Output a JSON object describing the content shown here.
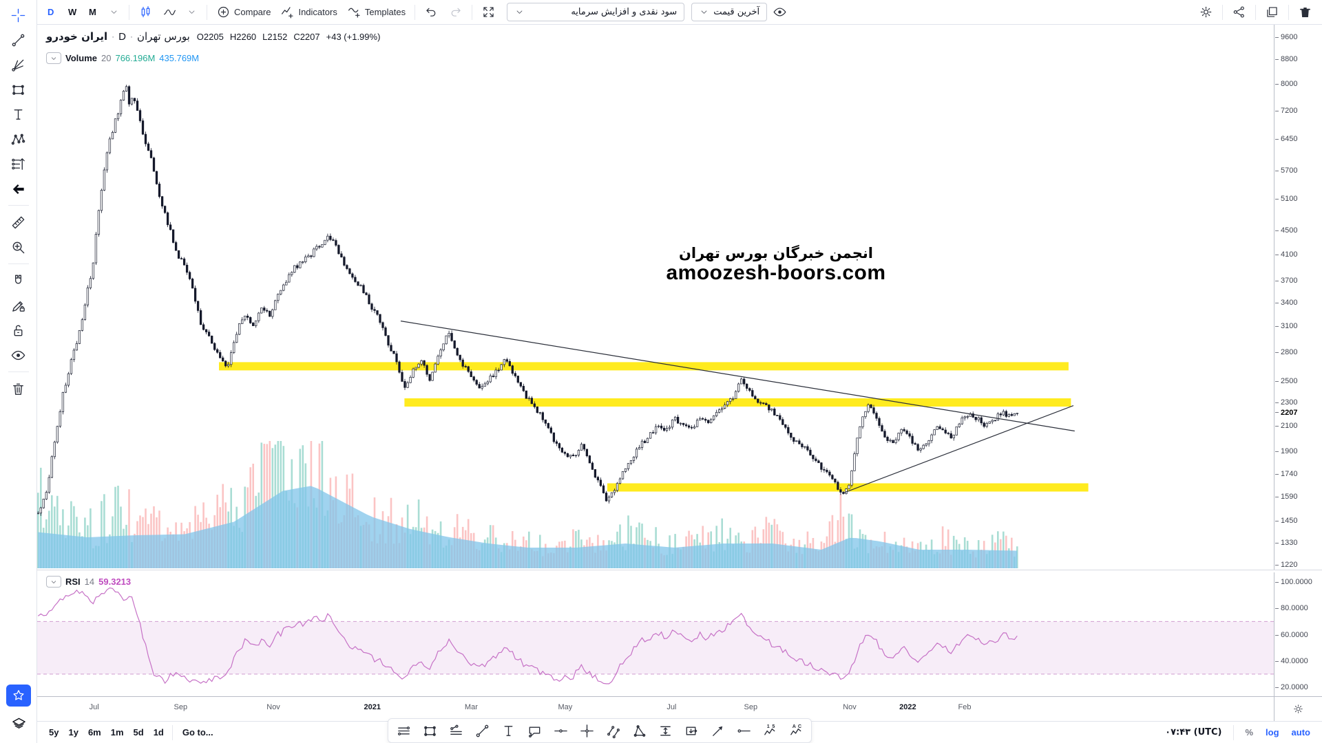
{
  "colors": {
    "accent": "#2962ff",
    "green": "#22ab94",
    "blue": "#2196f3",
    "rsi": "#bf4bbf",
    "candle": "#15192b",
    "band_yellow": "#ffe90c",
    "volume_up": "rgba(41,171,148,0.4)",
    "volume_down": "rgba(247,124,124,0.45)",
    "volume_ma_area": "rgba(128,196,233,0.75)",
    "rsi_line": "#c671c6",
    "trend_line": "#2a2e39"
  },
  "top_toolbar": {
    "intervals": [
      "D",
      "W",
      "M"
    ],
    "active_interval": "D",
    "compare_label": "Compare",
    "indicators_label": "Indicators",
    "templates_label": "Templates",
    "dropdown_adjustments": "سود نقدی و افزایش سرمایه",
    "dropdown_price_mode": "آخرین قیمت"
  },
  "legend": {
    "symbol": "ایران خودرو",
    "sep1": "·",
    "interval": "D",
    "sep2": "·",
    "exchange": "بورس تهران",
    "o": "O2205",
    "h": "H2260",
    "l": "L2152",
    "c": "C2207",
    "change": "+43 (+1.99%)",
    "volume_label": "Volume",
    "volume_period": "20",
    "volume_ma1": "766.196M",
    "volume_ma2": "435.769M",
    "rsi_label": "RSI",
    "rsi_period": "14",
    "rsi_value": "59.3213"
  },
  "bottom_toolbar": {
    "ranges": [
      "5y",
      "1y",
      "6m",
      "1m",
      "5d",
      "1d"
    ],
    "goto_label": "Go to...",
    "clock": "۰۷:۴۳ (UTC)",
    "percent_label": "%",
    "log_label": "log",
    "auto_label": "auto"
  },
  "left_toolbar": {
    "items": [
      {
        "name": "crosshair",
        "active": true
      },
      {
        "name": "trend-line"
      },
      {
        "name": "pitchfork"
      },
      {
        "name": "rectangle"
      },
      {
        "name": "text"
      },
      {
        "name": "xabcd-pattern"
      },
      {
        "name": "forecast"
      },
      {
        "name": "arrow-left",
        "style": "dark"
      },
      {
        "type": "divider"
      },
      {
        "name": "ruler"
      },
      {
        "name": "zoom-in"
      },
      {
        "type": "divider"
      },
      {
        "name": "magnet"
      },
      {
        "name": "pencil-lock"
      },
      {
        "name": "lock"
      },
      {
        "name": "eye"
      },
      {
        "type": "divider"
      },
      {
        "name": "trash"
      }
    ]
  },
  "drawing_toolbar": {
    "tools": [
      "horizontal-lines",
      "rectangle",
      "polyline",
      "trend-line",
      "text",
      "callout",
      "horizontal-line",
      "cross-line",
      "parallel-lines",
      "triangle",
      "price-range",
      "date-price-range",
      "arrow-marker",
      "horizontal-ray",
      "elliott-impulse",
      "elliott-correction"
    ]
  },
  "chart_data": {
    "type": "candlestick+volume+rsi",
    "symbol": "ایران خودرو",
    "exchange": "بورس تهران",
    "timeframe": "D",
    "ohlc_display": {
      "open": 2205,
      "high": 2260,
      "low": 2152,
      "close": 2207,
      "change": "+43",
      "change_pct": "+1.99%"
    },
    "watermark": {
      "line1": "انجمن خبرگان بورس تهران",
      "line2": "amoozesh-boors.com"
    },
    "price_scale": {
      "type": "log",
      "ticks": [
        9600,
        8800,
        8000,
        7200,
        6450,
        5700,
        5100,
        4500,
        4100,
        3700,
        3400,
        3100,
        2800,
        2500,
        2300,
        2100,
        1900,
        1740,
        1590,
        1450,
        1330,
        1220
      ],
      "current": 2207
    },
    "time_labels": [
      {
        "text": "Jul",
        "t": 0.046
      },
      {
        "text": "Sep",
        "t": 0.116
      },
      {
        "text": "Nov",
        "t": 0.191
      },
      {
        "text": "2021",
        "t": 0.271,
        "year": true
      },
      {
        "text": "Mar",
        "t": 0.351
      },
      {
        "text": "May",
        "t": 0.427
      },
      {
        "text": "Jul",
        "t": 0.513
      },
      {
        "text": "Sep",
        "t": 0.577
      },
      {
        "text": "Nov",
        "t": 0.657
      },
      {
        "text": "2022",
        "t": 0.704,
        "year": true
      },
      {
        "text": "Feb",
        "t": 0.75
      }
    ],
    "close_path": [
      [
        0,
        1500
      ],
      [
        0.009,
        1620
      ],
      [
        0.026,
        2400
      ],
      [
        0.039,
        2900
      ],
      [
        0.047,
        3300
      ],
      [
        0.056,
        3950
      ],
      [
        0.065,
        5300
      ],
      [
        0.073,
        6400
      ],
      [
        0.082,
        7200
      ],
      [
        0.089,
        8050
      ],
      [
        0.093,
        7400
      ],
      [
        0.097,
        7700
      ],
      [
        0.108,
        6500
      ],
      [
        0.116,
        5900
      ],
      [
        0.125,
        5050
      ],
      [
        0.133,
        4600
      ],
      [
        0.142,
        4100
      ],
      [
        0.151,
        3900
      ],
      [
        0.159,
        3500
      ],
      [
        0.168,
        3050
      ],
      [
        0.176,
        2950
      ],
      [
        0.187,
        2700
      ],
      [
        0.194,
        2640
      ],
      [
        0.202,
        3000
      ],
      [
        0.211,
        3250
      ],
      [
        0.219,
        3100
      ],
      [
        0.228,
        3320
      ],
      [
        0.237,
        3220
      ],
      [
        0.245,
        3500
      ],
      [
        0.254,
        3720
      ],
      [
        0.262,
        3900
      ],
      [
        0.271,
        4000
      ],
      [
        0.28,
        4120
      ],
      [
        0.288,
        4260
      ],
      [
        0.297,
        4420
      ],
      [
        0.306,
        4180
      ],
      [
        0.314,
        3900
      ],
      [
        0.323,
        3700
      ],
      [
        0.331,
        3580
      ],
      [
        0.34,
        3350
      ],
      [
        0.349,
        3180
      ],
      [
        0.357,
        2900
      ],
      [
        0.366,
        2700
      ],
      [
        0.374,
        2430
      ],
      [
        0.383,
        2600
      ],
      [
        0.392,
        2720
      ],
      [
        0.4,
        2520
      ],
      [
        0.41,
        2820
      ],
      [
        0.419,
        3020
      ],
      [
        0.426,
        2820
      ],
      [
        0.435,
        2650
      ],
      [
        0.443,
        2550
      ],
      [
        0.452,
        2440
      ],
      [
        0.46,
        2510
      ],
      [
        0.469,
        2610
      ],
      [
        0.478,
        2740
      ],
      [
        0.486,
        2550
      ],
      [
        0.495,
        2400
      ],
      [
        0.503,
        2300
      ],
      [
        0.512,
        2200
      ],
      [
        0.521,
        2080
      ],
      [
        0.529,
        1950
      ],
      [
        0.538,
        1890
      ],
      [
        0.546,
        1850
      ],
      [
        0.555,
        1960
      ],
      [
        0.564,
        1800
      ],
      [
        0.572,
        1690
      ],
      [
        0.581,
        1560
      ],
      [
        0.59,
        1650
      ],
      [
        0.598,
        1760
      ],
      [
        0.607,
        1860
      ],
      [
        0.615,
        1950
      ],
      [
        0.624,
        2010
      ],
      [
        0.633,
        2110
      ],
      [
        0.641,
        2050
      ],
      [
        0.65,
        2160
      ],
      [
        0.658,
        2100
      ],
      [
        0.667,
        2060
      ],
      [
        0.676,
        2160
      ],
      [
        0.684,
        2110
      ],
      [
        0.693,
        2210
      ],
      [
        0.701,
        2260
      ],
      [
        0.71,
        2360
      ],
      [
        0.719,
        2510
      ],
      [
        0.727,
        2400
      ],
      [
        0.736,
        2300
      ],
      [
        0.744,
        2260
      ],
      [
        0.753,
        2200
      ],
      [
        0.762,
        2100
      ],
      [
        0.77,
        2000
      ],
      [
        0.779,
        1950
      ],
      [
        0.787,
        1900
      ],
      [
        0.796,
        1810
      ],
      [
        0.805,
        1750
      ],
      [
        0.813,
        1700
      ],
      [
        0.822,
        1590
      ],
      [
        0.829,
        1680
      ],
      [
        0.836,
        1980
      ],
      [
        0.842,
        2160
      ],
      [
        0.849,
        2280
      ],
      [
        0.856,
        2150
      ],
      [
        0.865,
        2000
      ],
      [
        0.873,
        1950
      ],
      [
        0.882,
        2060
      ],
      [
        0.891,
        2000
      ],
      [
        0.899,
        1910
      ],
      [
        0.908,
        1960
      ],
      [
        0.917,
        2100
      ],
      [
        0.925,
        2060
      ],
      [
        0.934,
        2010
      ],
      [
        0.942,
        2150
      ],
      [
        0.951,
        2210
      ],
      [
        0.96,
        2150
      ],
      [
        0.968,
        2100
      ],
      [
        0.977,
        2160
      ],
      [
        0.985,
        2210
      ],
      [
        0.994,
        2180
      ],
      [
        1,
        2207
      ]
    ],
    "volume_path": [
      [
        0,
        0.6
      ],
      [
        0.02,
        0.4
      ],
      [
        0.05,
        0.3
      ],
      [
        0.08,
        0.5
      ],
      [
        0.1,
        0.38
      ],
      [
        0.13,
        0.3
      ],
      [
        0.16,
        0.35
      ],
      [
        0.19,
        0.55
      ],
      [
        0.21,
        0.45
      ],
      [
        0.235,
        0.8
      ],
      [
        0.25,
        1
      ],
      [
        0.265,
        0.85
      ],
      [
        0.285,
        0.95
      ],
      [
        0.3,
        0.7
      ],
      [
        0.32,
        0.5
      ],
      [
        0.34,
        0.45
      ],
      [
        0.36,
        0.4
      ],
      [
        0.38,
        0.42
      ],
      [
        0.4,
        0.35
      ],
      [
        0.42,
        0.3
      ],
      [
        0.45,
        0.26
      ],
      [
        0.48,
        0.24
      ],
      [
        0.5,
        0.2
      ],
      [
        0.53,
        0.18
      ],
      [
        0.56,
        0.26
      ],
      [
        0.58,
        0.2
      ],
      [
        0.6,
        0.3
      ],
      [
        0.62,
        0.24
      ],
      [
        0.65,
        0.18
      ],
      [
        0.68,
        0.26
      ],
      [
        0.7,
        0.3
      ],
      [
        0.72,
        0.2
      ],
      [
        0.75,
        0.3
      ],
      [
        0.78,
        0.22
      ],
      [
        0.8,
        0.15
      ],
      [
        0.82,
        0.45
      ],
      [
        0.84,
        0.28
      ],
      [
        0.86,
        0.2
      ],
      [
        0.88,
        0.18
      ],
      [
        0.9,
        0.16
      ],
      [
        0.92,
        0.26
      ],
      [
        0.94,
        0.18
      ],
      [
        0.96,
        0.16
      ],
      [
        0.98,
        0.2
      ],
      [
        1,
        0.18
      ]
    ],
    "volume_ma_path": [
      [
        0,
        0.35
      ],
      [
        0.05,
        0.3
      ],
      [
        0.1,
        0.32
      ],
      [
        0.15,
        0.33
      ],
      [
        0.2,
        0.45
      ],
      [
        0.25,
        0.75
      ],
      [
        0.28,
        0.8
      ],
      [
        0.31,
        0.65
      ],
      [
        0.34,
        0.5
      ],
      [
        0.38,
        0.38
      ],
      [
        0.42,
        0.3
      ],
      [
        0.46,
        0.24
      ],
      [
        0.5,
        0.2
      ],
      [
        0.55,
        0.2
      ],
      [
        0.6,
        0.24
      ],
      [
        0.65,
        0.2
      ],
      [
        0.7,
        0.24
      ],
      [
        0.75,
        0.24
      ],
      [
        0.8,
        0.18
      ],
      [
        0.83,
        0.3
      ],
      [
        0.86,
        0.26
      ],
      [
        0.9,
        0.18
      ],
      [
        0.95,
        0.18
      ],
      [
        1,
        0.17
      ]
    ],
    "rsi": {
      "period": 14,
      "value": 59.3213,
      "levels": [
        100,
        80,
        60,
        40,
        20
      ],
      "band": [
        30,
        70
      ],
      "path": [
        [
          0,
          72
        ],
        [
          0.013,
          80
        ],
        [
          0.026,
          88
        ],
        [
          0.039,
          92
        ],
        [
          0.047,
          90
        ],
        [
          0.056,
          85
        ],
        [
          0.065,
          90
        ],
        [
          0.073,
          95
        ],
        [
          0.082,
          90
        ],
        [
          0.09,
          85
        ],
        [
          0.095,
          88
        ],
        [
          0.103,
          70
        ],
        [
          0.112,
          45
        ],
        [
          0.12,
          28
        ],
        [
          0.129,
          25
        ],
        [
          0.138,
          30
        ],
        [
          0.146,
          28
        ],
        [
          0.155,
          25
        ],
        [
          0.164,
          22
        ],
        [
          0.172,
          25
        ],
        [
          0.181,
          28
        ],
        [
          0.187,
          25
        ],
        [
          0.194,
          30
        ],
        [
          0.202,
          45
        ],
        [
          0.211,
          55
        ],
        [
          0.219,
          50
        ],
        [
          0.228,
          55
        ],
        [
          0.237,
          52
        ],
        [
          0.245,
          60
        ],
        [
          0.254,
          64
        ],
        [
          0.262,
          67
        ],
        [
          0.271,
          69
        ],
        [
          0.28,
          71
        ],
        [
          0.288,
          72
        ],
        [
          0.297,
          74
        ],
        [
          0.306,
          64
        ],
        [
          0.314,
          55
        ],
        [
          0.323,
          50
        ],
        [
          0.331,
          48
        ],
        [
          0.34,
          43
        ],
        [
          0.349,
          40
        ],
        [
          0.357,
          35
        ],
        [
          0.366,
          30
        ],
        [
          0.374,
          27
        ],
        [
          0.383,
          35
        ],
        [
          0.392,
          40
        ],
        [
          0.4,
          35
        ],
        [
          0.41,
          48
        ],
        [
          0.419,
          55
        ],
        [
          0.426,
          48
        ],
        [
          0.435,
          42
        ],
        [
          0.443,
          38
        ],
        [
          0.452,
          35
        ],
        [
          0.46,
          38
        ],
        [
          0.469,
          45
        ],
        [
          0.478,
          52
        ],
        [
          0.486,
          45
        ],
        [
          0.495,
          38
        ],
        [
          0.503,
          35
        ],
        [
          0.512,
          32
        ],
        [
          0.521,
          28
        ],
        [
          0.529,
          25
        ],
        [
          0.538,
          27
        ],
        [
          0.546,
          28
        ],
        [
          0.555,
          35
        ],
        [
          0.564,
          30
        ],
        [
          0.572,
          27
        ],
        [
          0.581,
          22
        ],
        [
          0.59,
          30
        ],
        [
          0.598,
          40
        ],
        [
          0.607,
          48
        ],
        [
          0.615,
          55
        ],
        [
          0.624,
          58
        ],
        [
          0.633,
          62
        ],
        [
          0.641,
          58
        ],
        [
          0.65,
          62
        ],
        [
          0.658,
          58
        ],
        [
          0.667,
          55
        ],
        [
          0.676,
          60
        ],
        [
          0.684,
          57
        ],
        [
          0.693,
          62
        ],
        [
          0.701,
          65
        ],
        [
          0.71,
          70
        ],
        [
          0.719,
          77
        ],
        [
          0.727,
          65
        ],
        [
          0.736,
          58
        ],
        [
          0.744,
          55
        ],
        [
          0.753,
          52
        ],
        [
          0.762,
          48
        ],
        [
          0.77,
          42
        ],
        [
          0.779,
          40
        ],
        [
          0.787,
          38
        ],
        [
          0.796,
          35
        ],
        [
          0.805,
          32
        ],
        [
          0.813,
          30
        ],
        [
          0.822,
          25
        ],
        [
          0.831,
          35
        ],
        [
          0.839,
          50
        ],
        [
          0.849,
          62
        ],
        [
          0.856,
          55
        ],
        [
          0.865,
          45
        ],
        [
          0.873,
          42
        ],
        [
          0.882,
          50
        ],
        [
          0.891,
          46
        ],
        [
          0.899,
          40
        ],
        [
          0.908,
          45
        ],
        [
          0.917,
          55
        ],
        [
          0.925,
          50
        ],
        [
          0.934,
          46
        ],
        [
          0.942,
          55
        ],
        [
          0.951,
          60
        ],
        [
          0.96,
          56
        ],
        [
          0.968,
          52
        ],
        [
          0.977,
          55
        ],
        [
          0.985,
          60
        ],
        [
          0.994,
          58
        ],
        [
          1,
          59.32
        ]
      ]
    },
    "annotations": {
      "yellow_bands": [
        {
          "price": 2650,
          "t0": 0.147,
          "t1": 0.834
        },
        {
          "price": 2300,
          "t0": 0.297,
          "t1": 0.836
        },
        {
          "price": 1650,
          "t0": 0.461,
          "t1": 0.85
        }
      ],
      "trendlines": [
        {
          "t0": 0.294,
          "p0": 3163,
          "t1": 0.839,
          "p1": 2057
        },
        {
          "t0": 0.653,
          "p0": 1618,
          "t1": 0.838,
          "p1": 2272
        }
      ]
    }
  }
}
